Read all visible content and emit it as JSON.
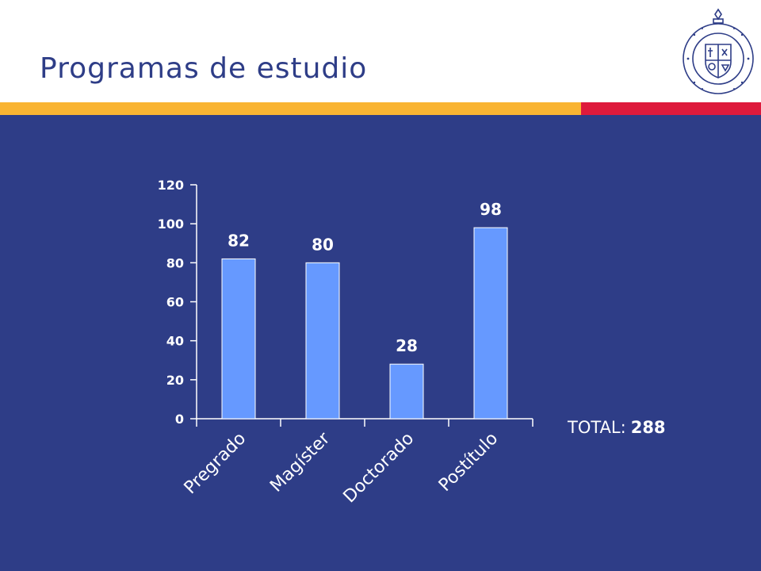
{
  "slide": {
    "title": "Programas de estudio",
    "total_label": "TOTAL:",
    "total_value": "288",
    "logo_text": "PONTIFICIA UNIVERSIDAD CATOLICA DE CHILE"
  },
  "colors": {
    "panel": "#2e3d87",
    "band_yellow": "#f9b432",
    "band_red": "#de1a3c",
    "bar": "#6699ff",
    "text": "#ffffff",
    "title": "#2e3d87"
  },
  "chart_data": {
    "type": "bar",
    "categories": [
      "Pregrado",
      "Magíster",
      "Doctorado",
      "Postítulo"
    ],
    "values": [
      82,
      80,
      28,
      98
    ],
    "data_labels": [
      "82",
      "80",
      "28",
      "98"
    ],
    "ylim": [
      0,
      120
    ],
    "yticks": [
      0,
      20,
      40,
      60,
      80,
      100,
      120
    ],
    "ytick_labels": [
      "0",
      "20",
      "40",
      "60",
      "80",
      "100",
      "120"
    ],
    "grid": false,
    "legend": false,
    "xlabel": "",
    "ylabel": ""
  }
}
